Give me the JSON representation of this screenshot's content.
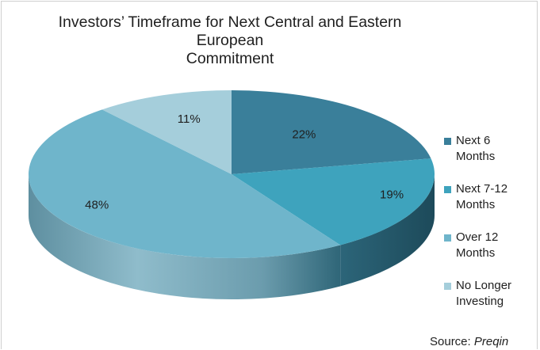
{
  "chart_data": {
    "type": "pie",
    "title_line1": "Investors’ Timeframe for Next Central and Eastern European",
    "title_line2": "Commitment",
    "categories": [
      "Next 6 Months",
      "Next 7-12 Months",
      "Over 12 Months",
      "No Longer Investing"
    ],
    "values": [
      22,
      19,
      48,
      11
    ],
    "labels": [
      "22%",
      "19%",
      "48%",
      "11%"
    ],
    "colors": [
      "#3a7f9a",
      "#3ea3bd",
      "#6fb5cb",
      "#a5cedb"
    ],
    "style": "3d",
    "legend_position": "right"
  },
  "legend": {
    "items": [
      {
        "line1": "Next 6",
        "line2": "Months",
        "color": "#3a7f9a"
      },
      {
        "line1": "Next 7-12",
        "line2": "Months",
        "color": "#3ea3bd"
      },
      {
        "line1": "Over 12",
        "line2": "Months",
        "color": "#6fb5cb"
      },
      {
        "line1": "No Longer",
        "line2": "Investing",
        "color": "#a5cedb"
      }
    ]
  },
  "source": {
    "prefix": "Source: ",
    "name": "Preqin"
  }
}
